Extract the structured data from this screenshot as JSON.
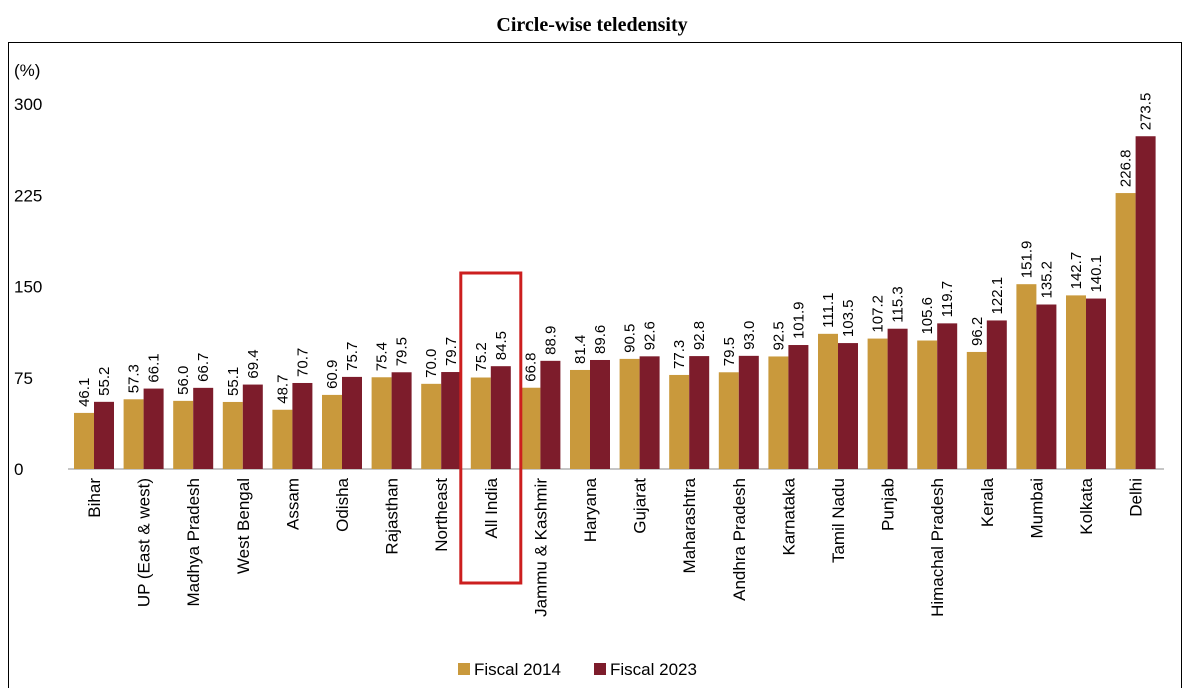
{
  "chart_data": {
    "type": "bar",
    "title": "Circle-wise teledensity",
    "ylabel": "(%)",
    "xlabel": "",
    "ylim": [
      0,
      300
    ],
    "yticks": [
      0,
      75,
      150,
      225,
      300
    ],
    "grid": false,
    "legend_position": "bottom",
    "highlighted_category": "All India",
    "categories": [
      "Bihar",
      "UP (East & west)",
      "Madhya Pradesh",
      "West Bengal",
      "Assam",
      "Odisha",
      "Rajasthan",
      "Northeast",
      "All India",
      "Jammu & Kashmir",
      "Haryana",
      "Gujarat",
      "Maharashtra",
      "Andhra Pradesh",
      "Karnataka",
      "Tamil Nadu",
      "Punjab",
      "Himachal Pradesh",
      "Kerala",
      "Mumbai",
      "Kolkata",
      "Delhi"
    ],
    "series": [
      {
        "name": "Fiscal 2014",
        "color": "#c9993c",
        "values": [
          46.1,
          57.3,
          56.0,
          55.1,
          48.7,
          60.9,
          75.4,
          70.0,
          75.2,
          66.8,
          81.4,
          90.5,
          77.3,
          79.5,
          92.5,
          111.1,
          107.2,
          105.6,
          96.2,
          151.9,
          142.7,
          226.8
        ],
        "labels": [
          "46.1",
          "57.3",
          "56.0",
          "55.1",
          "48.7",
          "60.9",
          "75.4",
          "70.0",
          "75.2",
          "66.8",
          "81.4",
          "90.5",
          "77.3",
          "79.5",
          "92.5",
          "111.1",
          "107.2",
          "105.6",
          "96.2",
          "151.9",
          "142.7",
          "226.8"
        ]
      },
      {
        "name": "Fiscal 2023",
        "color": "#7d1c2b",
        "values": [
          55.2,
          66.1,
          66.7,
          69.4,
          70.7,
          75.7,
          79.5,
          79.7,
          84.5,
          88.9,
          89.6,
          92.6,
          92.8,
          93.0,
          101.9,
          103.5,
          115.3,
          119.7,
          122.1,
          135.2,
          140.1,
          273.5
        ],
        "labels": [
          "55.2",
          "66.1",
          "66.7",
          "69.4",
          "70.7",
          "75.7",
          "79.5",
          "79.7",
          "84.5",
          "88.9",
          "89.6",
          "92.6",
          "92.8",
          "93.0",
          "101.9",
          "103.5",
          "115.3",
          "119.7",
          "122.1",
          "135.2",
          "140.1",
          "273.5"
        ]
      }
    ],
    "highlight_color": "#cc1f1f"
  }
}
